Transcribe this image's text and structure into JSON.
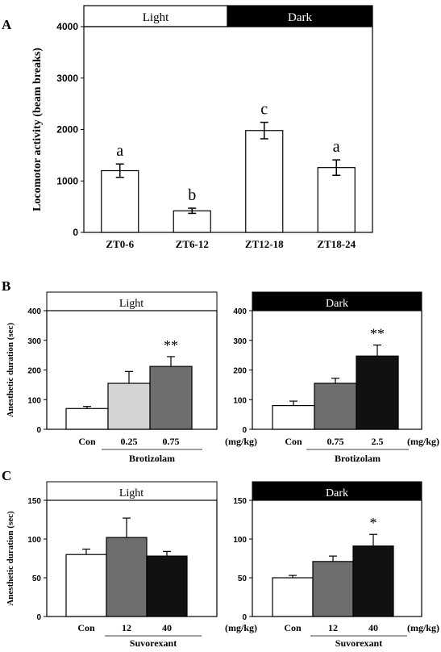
{
  "panel_labels": {
    "A": "A",
    "B": "B",
    "C": "C"
  },
  "period_labels": {
    "light": "Light",
    "dark": "Dark"
  },
  "colors": {
    "white": "#ffffff",
    "light_gray": "#d4d4d4",
    "gray": "#6e6e6e",
    "black": "#111111"
  },
  "chart_data": [
    {
      "id": "A",
      "type": "bar",
      "ylabel": "Locomotor activity (beam breaks)",
      "ylim": [
        0,
        4000
      ],
      "yticks": [
        0,
        1000,
        2000,
        3000,
        4000
      ],
      "categories": [
        "ZT0-6",
        "ZT6-12",
        "ZT12-18",
        "ZT18-24"
      ],
      "values": [
        1200,
        420,
        1980,
        1260
      ],
      "errors": [
        130,
        50,
        160,
        150
      ],
      "colors": [
        "#ffffff",
        "#ffffff",
        "#ffffff",
        "#ffffff"
      ],
      "annotations": [
        "a",
        "b",
        "c",
        "a"
      ]
    },
    {
      "id": "B-light",
      "type": "bar",
      "ylabel": "Anesthetic duration (sec)",
      "ylim": [
        0,
        400
      ],
      "yticks": [
        0,
        100,
        200,
        300,
        400
      ],
      "categories": [
        "Con",
        "0.25",
        "0.75"
      ],
      "values": [
        70,
        155,
        212
      ],
      "errors": [
        7,
        40,
        33
      ],
      "colors": [
        "#ffffff",
        "#d4d4d4",
        "#6e6e6e"
      ],
      "annotations": [
        "",
        "",
        "**"
      ],
      "unit_label": "(mg/kg)",
      "drug": "Brotizolam",
      "period": "light"
    },
    {
      "id": "B-dark",
      "type": "bar",
      "ylabel": "",
      "ylim": [
        0,
        400
      ],
      "yticks": [
        0,
        100,
        200,
        300,
        400
      ],
      "categories": [
        "Con",
        "0.75",
        "2.5"
      ],
      "values": [
        80,
        155,
        247
      ],
      "errors": [
        15,
        17,
        37
      ],
      "colors": [
        "#ffffff",
        "#6e6e6e",
        "#111111"
      ],
      "annotations": [
        "",
        "",
        "**"
      ],
      "unit_label": "(mg/kg)",
      "drug": "Brotizolam",
      "period": "dark"
    },
    {
      "id": "C-light",
      "type": "bar",
      "ylabel": "Anesthetic duration (sec)",
      "ylim": [
        0,
        150
      ],
      "yticks": [
        0,
        50,
        100,
        150
      ],
      "categories": [
        "Con",
        "12",
        "40"
      ],
      "values": [
        80,
        102,
        78
      ],
      "errors": [
        7,
        25,
        6
      ],
      "colors": [
        "#ffffff",
        "#6e6e6e",
        "#111111"
      ],
      "annotations": [
        "",
        "",
        ""
      ],
      "unit_label": "(mg/kg)",
      "drug": "Suvorexant",
      "period": "light"
    },
    {
      "id": "C-dark",
      "type": "bar",
      "ylabel": "",
      "ylim": [
        0,
        150
      ],
      "yticks": [
        0,
        50,
        100,
        150
      ],
      "categories": [
        "Con",
        "12",
        "40"
      ],
      "values": [
        50,
        71,
        91
      ],
      "errors": [
        3,
        7,
        15
      ],
      "colors": [
        "#ffffff",
        "#6e6e6e",
        "#111111"
      ],
      "annotations": [
        "",
        "",
        "*"
      ],
      "unit_label": "(mg/kg)",
      "drug": "Suvorexant",
      "period": "dark"
    }
  ]
}
